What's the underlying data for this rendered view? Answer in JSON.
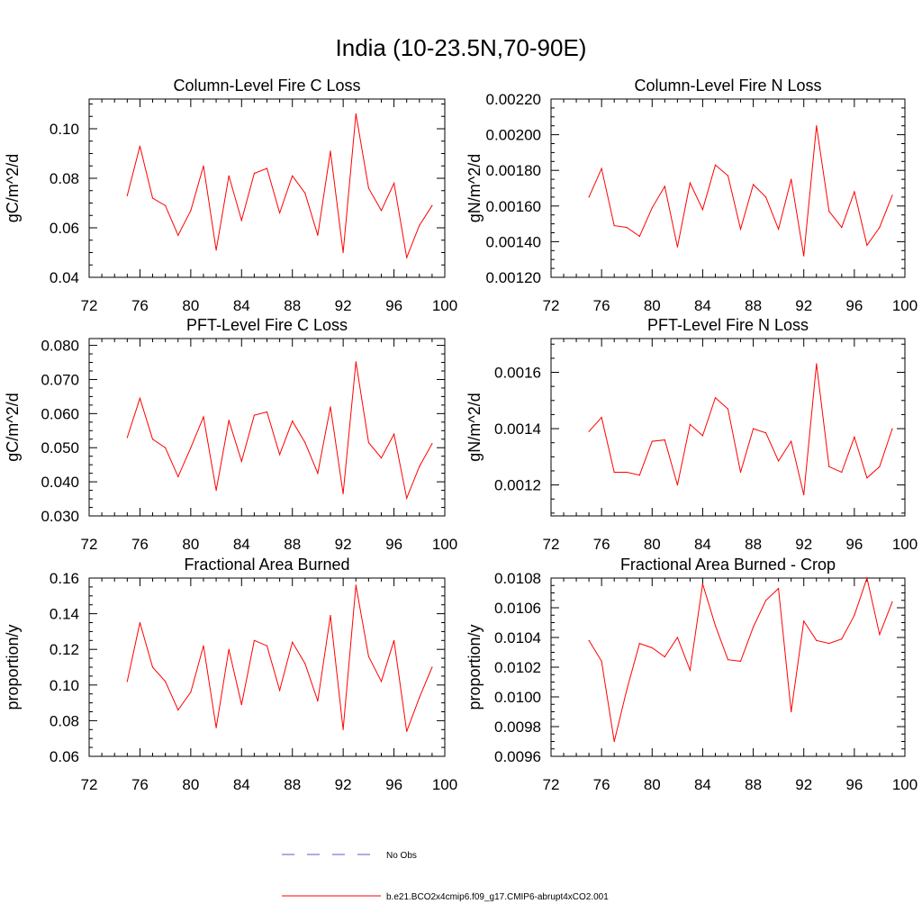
{
  "figure": {
    "title": "India (10-23.5N,70-90E)",
    "line_color": "#ff0000",
    "obs_color": "#5a5ad0"
  },
  "legend": {
    "obs_label": "No Obs",
    "model_label": "b.e21.BCO2x4cmip6.f09_g17.CMIP6-abrupt4xCO2.001"
  },
  "chart_data": [
    {
      "type": "line",
      "title": "Column-Level Fire C Loss",
      "ylabel": "gC/m^2/d",
      "xlim": [
        72,
        100
      ],
      "ylim": [
        0.04,
        0.112
      ],
      "xticks": [
        72,
        76,
        80,
        84,
        88,
        92,
        96,
        100
      ],
      "yticks": [
        0.04,
        0.06,
        0.08,
        0.1
      ],
      "ytick_labels": [
        "0.04",
        "0.06",
        "0.08",
        "0.10"
      ],
      "x": [
        75,
        76,
        77,
        78,
        79,
        80,
        81,
        82,
        83,
        84,
        85,
        86,
        87,
        88,
        89,
        90,
        91,
        92,
        93,
        94,
        95,
        96,
        97,
        98,
        99
      ],
      "series": [
        {
          "name": "b.e21.BCO2x4cmip6.f09_g17.CMIP6-abrupt4xCO2.001",
          "values": [
            0.073,
            0.093,
            0.072,
            0.069,
            0.057,
            0.067,
            0.085,
            0.051,
            0.081,
            0.063,
            0.082,
            0.084,
            0.066,
            0.081,
            0.074,
            0.057,
            0.091,
            0.05,
            0.106,
            0.076,
            0.067,
            0.078,
            0.048,
            0.061,
            0.069
          ]
        }
      ]
    },
    {
      "type": "line",
      "title": "Column-Level Fire N Loss",
      "ylabel": "gN/m^2/d",
      "xlim": [
        72,
        100
      ],
      "ylim": [
        0.0012,
        0.0022
      ],
      "xticks": [
        72,
        76,
        80,
        84,
        88,
        92,
        96,
        100
      ],
      "yticks": [
        0.0012,
        0.0014,
        0.0016,
        0.0018,
        0.002,
        0.0022
      ],
      "ytick_labels": [
        "0.00120",
        "0.00140",
        "0.00160",
        "0.00180",
        "0.00200",
        "0.00220"
      ],
      "x": [
        75,
        76,
        77,
        78,
        79,
        80,
        81,
        82,
        83,
        84,
        85,
        86,
        87,
        88,
        89,
        90,
        91,
        92,
        93,
        94,
        95,
        96,
        97,
        98,
        99
      ],
      "series": [
        {
          "name": "b.e21.BCO2x4cmip6.f09_g17.CMIP6-abrupt4xCO2.001",
          "values": [
            0.00165,
            0.00181,
            0.00149,
            0.00148,
            0.00143,
            0.00159,
            0.00171,
            0.00137,
            0.00173,
            0.00158,
            0.00183,
            0.00177,
            0.00147,
            0.00172,
            0.00165,
            0.00147,
            0.00175,
            0.00132,
            0.00205,
            0.00157,
            0.00148,
            0.00168,
            0.00138,
            0.00148,
            0.00166
          ]
        }
      ]
    },
    {
      "type": "line",
      "title": "PFT-Level Fire C Loss",
      "ylabel": "gC/m^2/d",
      "xlim": [
        72,
        100
      ],
      "ylim": [
        0.03,
        0.082
      ],
      "xticks": [
        72,
        76,
        80,
        84,
        88,
        92,
        96,
        100
      ],
      "yticks": [
        0.03,
        0.04,
        0.05,
        0.06,
        0.07,
        0.08
      ],
      "ytick_labels": [
        "0.030",
        "0.040",
        "0.050",
        "0.060",
        "0.070",
        "0.080"
      ],
      "x": [
        75,
        76,
        77,
        78,
        79,
        80,
        81,
        82,
        83,
        84,
        85,
        86,
        87,
        88,
        89,
        90,
        91,
        92,
        93,
        94,
        95,
        96,
        97,
        98,
        99
      ],
      "series": [
        {
          "name": "b.e21.BCO2x4cmip6.f09_g17.CMIP6-abrupt4xCO2.001",
          "values": [
            0.053,
            0.0645,
            0.0525,
            0.05,
            0.0415,
            0.05,
            0.059,
            0.0375,
            0.058,
            0.046,
            0.0595,
            0.0605,
            0.048,
            0.0578,
            0.0515,
            0.0425,
            0.062,
            0.0365,
            0.0752,
            0.0515,
            0.047,
            0.054,
            0.0352,
            0.0445,
            0.0512
          ]
        }
      ]
    },
    {
      "type": "line",
      "title": "PFT-Level Fire N Loss",
      "ylabel": "gN/m^2/d",
      "xlim": [
        72,
        100
      ],
      "ylim": [
        0.00109,
        0.00172
      ],
      "xticks": [
        72,
        76,
        80,
        84,
        88,
        92,
        96,
        100
      ],
      "yticks": [
        0.0012,
        0.0014,
        0.0016
      ],
      "ytick_labels": [
        "0.0012",
        "0.0014",
        "0.0016"
      ],
      "x": [
        75,
        76,
        77,
        78,
        79,
        80,
        81,
        82,
        83,
        84,
        85,
        86,
        87,
        88,
        89,
        90,
        91,
        92,
        93,
        94,
        95,
        96,
        97,
        98,
        99
      ],
      "series": [
        {
          "name": "b.e21.BCO2x4cmip6.f09_g17.CMIP6-abrupt4xCO2.001",
          "values": [
            0.00139,
            0.00144,
            0.001245,
            0.001245,
            0.001235,
            0.001355,
            0.00136,
            0.0012,
            0.001415,
            0.001375,
            0.00151,
            0.00147,
            0.001245,
            0.0014,
            0.001385,
            0.001285,
            0.001355,
            0.001165,
            0.00163,
            0.001265,
            0.001245,
            0.00137,
            0.001225,
            0.001265,
            0.0014
          ]
        }
      ]
    },
    {
      "type": "line",
      "title": "Fractional Area Burned",
      "ylabel": "proportion/y",
      "xlim": [
        72,
        100
      ],
      "ylim": [
        0.06,
        0.16
      ],
      "xticks": [
        72,
        76,
        80,
        84,
        88,
        92,
        96,
        100
      ],
      "yticks": [
        0.06,
        0.08,
        0.1,
        0.12,
        0.14,
        0.16
      ],
      "ytick_labels": [
        "0.06",
        "0.08",
        "0.10",
        "0.12",
        "0.14",
        "0.16"
      ],
      "x": [
        75,
        76,
        77,
        78,
        79,
        80,
        81,
        82,
        83,
        84,
        85,
        86,
        87,
        88,
        89,
        90,
        91,
        92,
        93,
        94,
        95,
        96,
        97,
        98,
        99
      ],
      "series": [
        {
          "name": "b.e21.BCO2x4cmip6.f09_g17.CMIP6-abrupt4xCO2.001",
          "values": [
            0.102,
            0.135,
            0.11,
            0.102,
            0.086,
            0.096,
            0.122,
            0.076,
            0.12,
            0.089,
            0.125,
            0.122,
            0.097,
            0.124,
            0.112,
            0.091,
            0.139,
            0.075,
            0.156,
            0.116,
            0.102,
            0.125,
            0.074,
            0.093,
            0.11
          ]
        }
      ]
    },
    {
      "type": "line",
      "title": "Fractional Area Burned - Crop",
      "ylabel": "proportion/y",
      "xlim": [
        72,
        100
      ],
      "ylim": [
        0.0096,
        0.0108
      ],
      "xticks": [
        72,
        76,
        80,
        84,
        88,
        92,
        96,
        100
      ],
      "yticks": [
        0.0096,
        0.0098,
        0.01,
        0.0102,
        0.0104,
        0.0106,
        0.0108
      ],
      "ytick_labels": [
        "0.0096",
        "0.0098",
        "0.0100",
        "0.0102",
        "0.0104",
        "0.0106",
        "0.0108"
      ],
      "x": [
        75,
        76,
        77,
        78,
        79,
        80,
        81,
        82,
        83,
        84,
        85,
        86,
        87,
        88,
        89,
        90,
        91,
        92,
        93,
        94,
        95,
        96,
        97,
        98,
        99
      ],
      "series": [
        {
          "name": "b.e21.BCO2x4cmip6.f09_g17.CMIP6-abrupt4xCO2.001",
          "values": [
            0.01038,
            0.01024,
            0.0097,
            0.01005,
            0.01036,
            0.01033,
            0.01027,
            0.0104,
            0.01018,
            0.01076,
            0.01048,
            0.01025,
            0.01024,
            0.01047,
            0.01065,
            0.01073,
            0.0099,
            0.01051,
            0.01038,
            0.01036,
            0.01039,
            0.01055,
            0.0108,
            0.01042,
            0.01064
          ]
        }
      ]
    }
  ]
}
